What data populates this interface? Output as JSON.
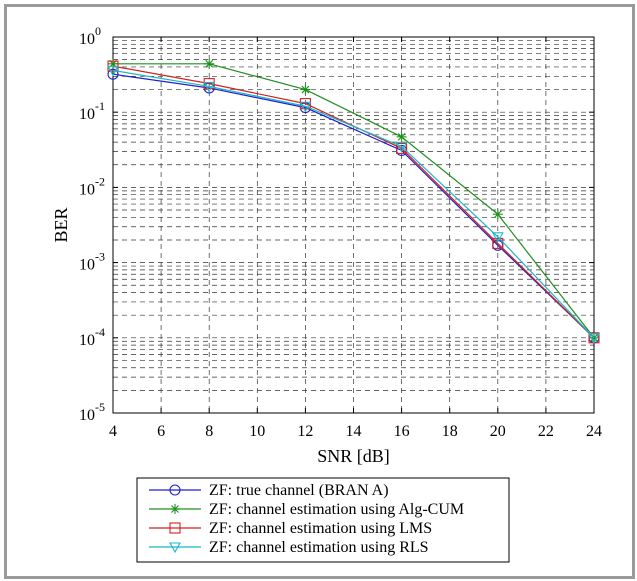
{
  "chart_data": {
    "type": "line",
    "title": "",
    "xlabel": "SNR [dB]",
    "ylabel": "BER",
    "xlim": [
      4,
      24
    ],
    "ylim": [
      1e-05,
      1
    ],
    "yscale": "log",
    "grid": true,
    "legend_position": "bottom",
    "x_ticks": [
      4,
      6,
      8,
      10,
      12,
      14,
      16,
      18,
      20,
      22,
      24
    ],
    "y_ticks": [
      {
        "value": 1,
        "base": "10",
        "exp": "0"
      },
      {
        "value": 0.1,
        "base": "10",
        "exp": "-1"
      },
      {
        "value": 0.01,
        "base": "10",
        "exp": "-2"
      },
      {
        "value": 0.001,
        "base": "10",
        "exp": "-3"
      },
      {
        "value": 0.0001,
        "base": "10",
        "exp": "-4"
      },
      {
        "value": 1e-05,
        "base": "10",
        "exp": "-5"
      }
    ],
    "series": [
      {
        "name": "ZF: true channel (BRAN A)",
        "color": "#1f1fd0",
        "marker": "circle",
        "x": [
          4,
          8,
          12,
          16,
          20,
          24
        ],
        "y": [
          0.32,
          0.21,
          0.115,
          0.031,
          0.0017,
          0.0001
        ]
      },
      {
        "name": "ZF: channel estimation using Alg-CUM",
        "color": "#1e8f1e",
        "marker": "star",
        "x": [
          4,
          8,
          12,
          16,
          20,
          24
        ],
        "y": [
          0.44,
          0.44,
          0.2,
          0.047,
          0.0044,
          0.0001
        ]
      },
      {
        "name": "ZF: channel estimation using LMS",
        "color": "#d62020",
        "marker": "square",
        "x": [
          4,
          8,
          12,
          16,
          20,
          24
        ],
        "y": [
          0.41,
          0.24,
          0.13,
          0.033,
          0.0018,
          0.0001
        ]
      },
      {
        "name": "ZF: channel estimation using RLS",
        "color": "#18b8c8",
        "marker": "triangle-down",
        "x": [
          4,
          8,
          12,
          16,
          20,
          24
        ],
        "y": [
          0.36,
          0.22,
          0.12,
          0.035,
          0.0022,
          0.0001
        ]
      }
    ]
  }
}
